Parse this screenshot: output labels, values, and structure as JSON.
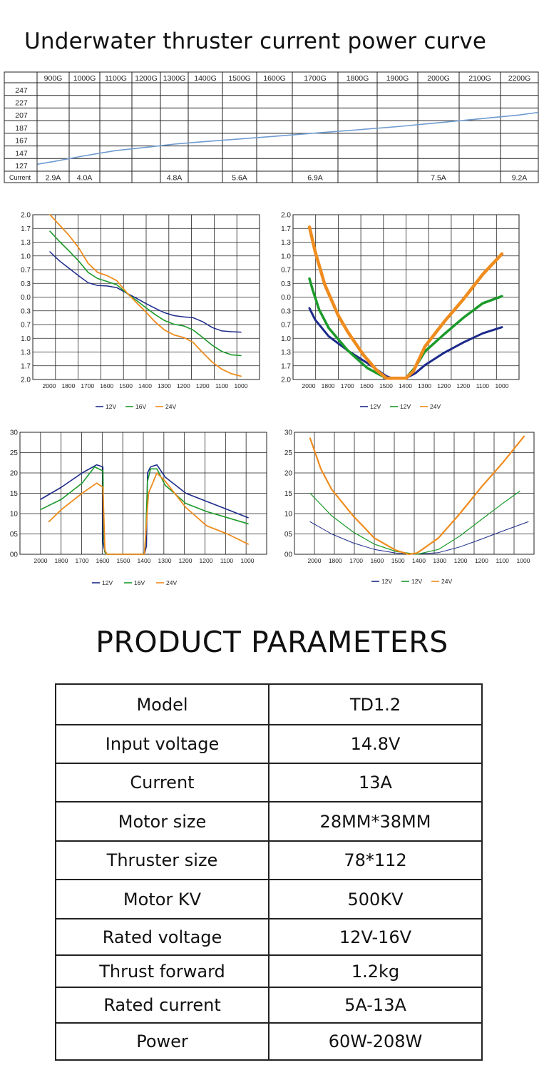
{
  "title": "Underwater thruster current power curve",
  "chart_data": [
    {
      "type": "table",
      "columns": [
        "900G",
        "1000G",
        "1100G",
        "1200G",
        "1300G",
        "1400G",
        "1500G",
        "1600G",
        "1700G",
        "1800G",
        "1900G",
        "2000G",
        "2100G",
        "2200G"
      ],
      "row_labels": [
        "247",
        "227",
        "207",
        "187",
        "167",
        "147",
        "127"
      ],
      "current_label": "Current",
      "current_values": [
        "2.9A",
        "4.0A",
        "",
        "",
        "4.8A",
        "",
        "5.6A",
        "",
        "6.9A",
        "",
        "",
        "7.5A",
        "",
        "9.2A"
      ],
      "line_color": "#6f9bd1",
      "series": [
        {
          "x": [
            850,
            900,
            1000,
            1100,
            1200,
            1300,
            1400,
            1500,
            1600,
            1700,
            1800,
            1900,
            2000,
            2100,
            2200,
            2250
          ],
          "values": [
            129,
            133,
            142,
            150,
            155,
            160,
            164,
            168,
            172,
            177,
            182,
            187,
            193,
            199,
            205,
            209
          ]
        }
      ]
    },
    {
      "type": "line",
      "yticks": [
        "2.0",
        "1.7",
        "1.3",
        "1.0",
        "0.7",
        "0.3",
        "0.0",
        "0.3",
        "0.7",
        "1.0",
        "1.3",
        "1.7",
        "2.0"
      ],
      "xticks": [
        "2000",
        "1800",
        "1700",
        "1600",
        "1500",
        "1400",
        "1300",
        "1200",
        "1200",
        "1100",
        "1000"
      ],
      "legend": [
        "12V",
        "16V",
        "24V"
      ],
      "series": [
        {
          "name": "12V",
          "color": "#1d2a8a",
          "x": [
            0,
            0.5,
            1,
            1.5,
            2,
            2.5,
            3,
            3.5,
            4,
            4.5,
            5,
            5.5,
            6,
            6.5,
            7,
            7.5,
            8,
            8.5,
            9,
            9.5,
            10
          ],
          "values": [
            1.1,
            0.88,
            0.7,
            0.52,
            0.35,
            0.28,
            0.27,
            0.23,
            0.1,
            -0.02,
            -0.15,
            -0.27,
            -0.38,
            -0.45,
            -0.48,
            -0.5,
            -0.6,
            -0.74,
            -0.82,
            -0.84,
            -0.85
          ]
        },
        {
          "name": "16V",
          "color": "#1b9a2a",
          "x": [
            0,
            0.5,
            1,
            1.5,
            2,
            2.5,
            3,
            3.5,
            4,
            4.5,
            5,
            5.5,
            6,
            6.5,
            7,
            7.5,
            8,
            8.5,
            9,
            9.5,
            10
          ],
          "values": [
            1.6,
            1.35,
            1.12,
            0.88,
            0.6,
            0.45,
            0.38,
            0.3,
            0.1,
            -0.07,
            -0.25,
            -0.42,
            -0.57,
            -0.66,
            -0.7,
            -0.8,
            -0.98,
            -1.17,
            -1.32,
            -1.4,
            -1.42
          ]
        },
        {
          "name": "24V",
          "color": "#ef8c1e",
          "x": [
            0,
            0.5,
            1,
            1.5,
            2,
            2.5,
            3,
            3.5,
            4,
            4.5,
            5,
            5.5,
            6,
            6.5,
            7,
            7.5,
            8,
            8.5,
            9,
            9.5,
            10
          ],
          "values": [
            2.0,
            1.75,
            1.5,
            1.2,
            0.82,
            0.6,
            0.52,
            0.4,
            0.12,
            -0.12,
            -0.35,
            -0.6,
            -0.8,
            -0.92,
            -0.98,
            -1.1,
            -1.35,
            -1.58,
            -1.75,
            -1.86,
            -1.92
          ]
        }
      ]
    },
    {
      "type": "line",
      "yticks": [
        "2.0",
        "1.7",
        "1.3",
        "1.0",
        "0.7",
        "0.3",
        "0.0",
        "0.3",
        "0.7",
        "1.0",
        "1.3",
        "1.7",
        "2.0"
      ],
      "xticks": [
        "2000",
        "1800",
        "1700",
        "1600",
        "1500",
        "1400",
        "1300",
        "1200",
        "1200",
        "1100",
        "1000"
      ],
      "legend": [
        "12V",
        "12V",
        "24V"
      ],
      "series": [
        {
          "name": "12V",
          "color": "#1d2a8a",
          "x": [
            0,
            0.3,
            1,
            2,
            3,
            4,
            4.3,
            5,
            5.5,
            6,
            7,
            8,
            9,
            10
          ],
          "values": [
            -0.27,
            -0.55,
            -0.95,
            -1.3,
            -1.6,
            -1.92,
            -1.97,
            -1.97,
            -1.85,
            -1.65,
            -1.35,
            -1.1,
            -0.88,
            -0.73
          ]
        },
        {
          "name": "12V",
          "color": "#1b9a2a",
          "x": [
            0,
            0.15,
            0.5,
            1,
            2,
            3,
            4,
            4.3,
            5,
            5.5,
            6,
            7,
            8,
            9,
            10
          ],
          "values": [
            0.45,
            0.2,
            -0.3,
            -0.75,
            -1.3,
            -1.72,
            -1.97,
            -1.97,
            -1.97,
            -1.7,
            -1.32,
            -0.9,
            -0.5,
            -0.15,
            0.02
          ]
        },
        {
          "name": "24V",
          "color": "#ef8c1e",
          "x": [
            0,
            0.3,
            0.8,
            1.5,
            2,
            2.8,
            3.5,
            4,
            4.3,
            5,
            5.4,
            6,
            7,
            8,
            9,
            10
          ],
          "values": [
            1.7,
            1.1,
            0.3,
            -0.45,
            -0.85,
            -1.4,
            -1.78,
            -1.97,
            -1.97,
            -1.97,
            -1.8,
            -1.2,
            -0.6,
            -0.05,
            0.55,
            1.05
          ]
        }
      ]
    },
    {
      "type": "line",
      "yticks": [
        "30",
        "25",
        "20",
        "15",
        "10",
        "05",
        "00"
      ],
      "xticks": [
        "2000",
        "1800",
        "1700",
        "1600",
        "1500",
        "1400",
        "1300",
        "1200",
        "1200",
        "1100",
        "1000"
      ],
      "legend": [
        "12V",
        "16V",
        "24V"
      ],
      "series": [
        {
          "name": "12V",
          "color": "#1d2a8a",
          "x": [
            0,
            1,
            2,
            2.7,
            3.0,
            3.0,
            3.1,
            3.2,
            3.6,
            4.0,
            4.3,
            5.0,
            5.1,
            5.15,
            5.3,
            5.6,
            6,
            7,
            8,
            9,
            10
          ],
          "values": [
            13.5,
            16.5,
            20,
            22,
            21.5,
            3,
            0.5,
            0,
            0,
            0,
            0,
            0,
            2,
            20,
            21.5,
            22,
            19,
            15,
            13,
            11,
            9
          ]
        },
        {
          "name": "16V",
          "color": "#1b9a2a",
          "x": [
            0,
            1,
            2,
            2.6,
            3.0,
            3.05,
            3.1,
            3.2,
            3.6,
            4.0,
            4.3,
            5.0,
            5.05,
            5.15,
            5.3,
            5.6,
            6,
            7,
            8,
            9,
            10
          ],
          "values": [
            11,
            13.5,
            17.5,
            21.5,
            20.5,
            4,
            0.5,
            0,
            0,
            0,
            0,
            0,
            3,
            18,
            21,
            21,
            17,
            12.5,
            10.5,
            9,
            7.5
          ]
        },
        {
          "name": "24V",
          "color": "#ef8c1e",
          "x": [
            0.4,
            1,
            2,
            2.7,
            3.0,
            3.1,
            3.2,
            3.6,
            4.0,
            4.3,
            5.0,
            5.05,
            5.2,
            5.6,
            6,
            7,
            8,
            9,
            10
          ],
          "values": [
            8,
            11,
            15,
            17.5,
            16.5,
            1,
            0,
            0,
            0,
            0,
            0,
            4,
            15,
            20,
            18,
            11.5,
            7,
            5,
            2.5
          ]
        }
      ]
    },
    {
      "type": "line",
      "yticks": [
        "30",
        "25",
        "20",
        "15",
        "10",
        "05",
        "00"
      ],
      "xticks": [
        "2000",
        "1800",
        "1700",
        "1600",
        "1500",
        "1400",
        "1300",
        "1200",
        "1200",
        "1100",
        "1000"
      ],
      "legend": [
        "12V",
        "12V",
        "24V"
      ],
      "series": [
        {
          "name": "12V",
          "color": "#1d2a8a",
          "x": [
            0,
            1,
            2,
            3,
            4,
            5,
            6,
            7,
            8,
            9,
            10.2
          ],
          "values": [
            8,
            5,
            2.8,
            1.2,
            0.3,
            0.05,
            0.4,
            1.8,
            3.7,
            5.7,
            8
          ]
        },
        {
          "name": "12V",
          "color": "#1b9a2a",
          "x": [
            0,
            1,
            2,
            3,
            4,
            5,
            6,
            7,
            8,
            9,
            9.8
          ],
          "values": [
            15,
            9.5,
            5.5,
            2.5,
            0.7,
            0,
            1.2,
            4.5,
            8.5,
            12.5,
            15.5
          ]
        },
        {
          "name": "24V",
          "color": "#ef8c1e",
          "x": [
            0,
            0.5,
            1,
            2,
            3,
            4,
            4.6,
            5,
            6,
            7,
            8,
            9,
            10
          ],
          "values": [
            28.5,
            21,
            16,
            9.5,
            4,
            1,
            0,
            0.3,
            4,
            10,
            16.5,
            22.5,
            29
          ]
        }
      ]
    }
  ],
  "parameters": {
    "heading": "PRODUCT PARAMETERS",
    "rows": [
      {
        "label": "Model",
        "value": "TD1.2"
      },
      {
        "label": "Input voltage",
        "value": "14.8V"
      },
      {
        "label": "Current",
        "value": "13A"
      },
      {
        "label": "Motor size",
        "value": "28MM*38MM"
      },
      {
        "label": "Thruster size",
        "value": "78*112"
      },
      {
        "label": "Motor KV",
        "value": "500KV"
      },
      {
        "label": "Rated voltage",
        "value": "12V-16V"
      },
      {
        "label": "Thrust forward",
        "value": "1.2kg"
      },
      {
        "label": "Rated current",
        "value": "5A-13A"
      },
      {
        "label": "Power",
        "value": "60W-208W"
      }
    ]
  }
}
